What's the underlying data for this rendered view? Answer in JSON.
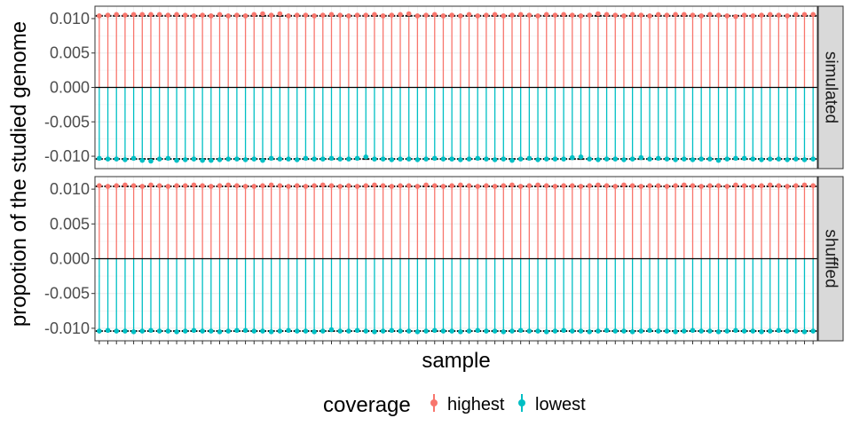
{
  "chart_data": {
    "type": "lollipop",
    "title": "",
    "xlabel": "sample",
    "ylabel": "propotion of the studied genome",
    "ylim": [
      -0.0118,
      0.0118
    ],
    "yticks": [
      -0.01,
      -0.005,
      0.0,
      0.005,
      0.01
    ],
    "ytick_labels": [
      "-0.010",
      "-0.005",
      "0.000",
      "0.005",
      "0.010"
    ],
    "n_samples": 84,
    "x_tick_labels_shown": false,
    "reference_line": 0.0,
    "reference_marker_abs": 0.0104,
    "legend": {
      "title": "coverage",
      "position": "bottom",
      "entries": [
        {
          "name": "highest",
          "color": "#F8766D"
        },
        {
          "name": "lowest",
          "color": "#00BFC4"
        }
      ]
    },
    "panels": [
      {
        "label": "simulated",
        "series": [
          {
            "name": "highest",
            "color": "#F8766D",
            "values": [
              0.0104,
              0.0105,
              0.0106,
              0.0105,
              0.0106,
              0.0106,
              0.0106,
              0.0106,
              0.0105,
              0.0106,
              0.0105,
              0.0104,
              0.0105,
              0.0104,
              0.0106,
              0.0104,
              0.0105,
              0.0104,
              0.0106,
              0.0107,
              0.0105,
              0.0107,
              0.0104,
              0.0105,
              0.0105,
              0.0104,
              0.0105,
              0.0106,
              0.0105,
              0.0104,
              0.0105,
              0.0105,
              0.0106,
              0.0104,
              0.0105,
              0.0106,
              0.0107,
              0.0104,
              0.0105,
              0.0106,
              0.0104,
              0.0105,
              0.0104,
              0.0106,
              0.0104,
              0.0105,
              0.0106,
              0.0104,
              0.0105,
              0.0106,
              0.0105,
              0.0104,
              0.0106,
              0.0105,
              0.0106,
              0.0105,
              0.0104,
              0.0105,
              0.0107,
              0.0106,
              0.0105,
              0.0104,
              0.0106,
              0.0105,
              0.0104,
              0.0106,
              0.0105,
              0.0106,
              0.0106,
              0.0105,
              0.0104,
              0.0106,
              0.0105,
              0.0104,
              0.0103,
              0.0105,
              0.0104,
              0.0105,
              0.0106,
              0.0105,
              0.0104,
              0.0106,
              0.0106,
              0.0106
            ]
          },
          {
            "name": "lowest",
            "color": "#00BFC4",
            "values": [
              -0.0103,
              -0.0104,
              -0.0104,
              -0.0105,
              -0.0103,
              -0.0106,
              -0.0107,
              -0.0104,
              -0.0103,
              -0.0106,
              -0.0105,
              -0.0104,
              -0.0106,
              -0.0106,
              -0.0105,
              -0.0104,
              -0.0104,
              -0.0105,
              -0.0104,
              -0.0106,
              -0.0103,
              -0.0104,
              -0.0104,
              -0.0105,
              -0.0103,
              -0.0104,
              -0.0104,
              -0.0103,
              -0.0104,
              -0.0104,
              -0.0103,
              -0.0101,
              -0.0104,
              -0.0104,
              -0.0105,
              -0.0104,
              -0.0104,
              -0.0105,
              -0.0104,
              -0.0103,
              -0.0104,
              -0.0104,
              -0.0105,
              -0.0104,
              -0.0103,
              -0.0104,
              -0.0105,
              -0.0104,
              -0.0106,
              -0.0104,
              -0.0103,
              -0.0105,
              -0.0104,
              -0.0104,
              -0.0104,
              -0.0102,
              -0.0101,
              -0.0104,
              -0.0105,
              -0.0104,
              -0.0104,
              -0.0105,
              -0.0104,
              -0.0102,
              -0.0104,
              -0.0103,
              -0.0104,
              -0.0105,
              -0.0104,
              -0.0105,
              -0.0104,
              -0.0104,
              -0.0106,
              -0.0104,
              -0.0103,
              -0.0103,
              -0.0104,
              -0.0105,
              -0.0104,
              -0.0104,
              -0.0105,
              -0.0104,
              -0.0105,
              -0.0104
            ]
          }
        ]
      },
      {
        "label": "shuffled",
        "series": [
          {
            "name": "highest",
            "color": "#F8766D",
            "values": [
              0.0105,
              0.0104,
              0.0105,
              0.0106,
              0.0105,
              0.0104,
              0.0106,
              0.0105,
              0.0104,
              0.0105,
              0.0105,
              0.0106,
              0.0105,
              0.0104,
              0.0105,
              0.0106,
              0.0105,
              0.0104,
              0.0104,
              0.0105,
              0.0106,
              0.0105,
              0.0104,
              0.0105,
              0.0104,
              0.0105,
              0.0106,
              0.0105,
              0.0104,
              0.0105,
              0.0104,
              0.0105,
              0.0106,
              0.0105,
              0.0104,
              0.0105,
              0.0105,
              0.0104,
              0.0106,
              0.0105,
              0.0104,
              0.0105,
              0.0106,
              0.0105,
              0.0104,
              0.0105,
              0.0104,
              0.0105,
              0.0106,
              0.0104,
              0.0105,
              0.0106,
              0.0105,
              0.0104,
              0.0105,
              0.0105,
              0.0104,
              0.0105,
              0.0106,
              0.0105,
              0.0104,
              0.0106,
              0.0105,
              0.0104,
              0.0105,
              0.0105,
              0.0104,
              0.0105,
              0.0106,
              0.0105,
              0.0104,
              0.0105,
              0.0105,
              0.0104,
              0.0106,
              0.0105,
              0.0104,
              0.0105,
              0.0106,
              0.0105,
              0.0104,
              0.0105,
              0.0106,
              0.0105
            ]
          },
          {
            "name": "lowest",
            "color": "#00BFC4",
            "values": [
              -0.0104,
              -0.0103,
              -0.0104,
              -0.0104,
              -0.0105,
              -0.0104,
              -0.0103,
              -0.0104,
              -0.0104,
              -0.0105,
              -0.0104,
              -0.0103,
              -0.0104,
              -0.0104,
              -0.0105,
              -0.0104,
              -0.0103,
              -0.0103,
              -0.0104,
              -0.0104,
              -0.0105,
              -0.0104,
              -0.0103,
              -0.0104,
              -0.0104,
              -0.0105,
              -0.0104,
              -0.0102,
              -0.0104,
              -0.0104,
              -0.0103,
              -0.0104,
              -0.0105,
              -0.0104,
              -0.0103,
              -0.0104,
              -0.0104,
              -0.0105,
              -0.0104,
              -0.0103,
              -0.0104,
              -0.0104,
              -0.0105,
              -0.0104,
              -0.0103,
              -0.0104,
              -0.0104,
              -0.0105,
              -0.0104,
              -0.0103,
              -0.0104,
              -0.0104,
              -0.0105,
              -0.0104,
              -0.0103,
              -0.0104,
              -0.0104,
              -0.0105,
              -0.0104,
              -0.0103,
              -0.0104,
              -0.0104,
              -0.0105,
              -0.0104,
              -0.0103,
              -0.0104,
              -0.0104,
              -0.0105,
              -0.0104,
              -0.0103,
              -0.0104,
              -0.0104,
              -0.0105,
              -0.0104,
              -0.0103,
              -0.0104,
              -0.0104,
              -0.0105,
              -0.0104,
              -0.0103,
              -0.0104,
              -0.0104,
              -0.0105,
              -0.0104
            ]
          }
        ]
      }
    ]
  }
}
